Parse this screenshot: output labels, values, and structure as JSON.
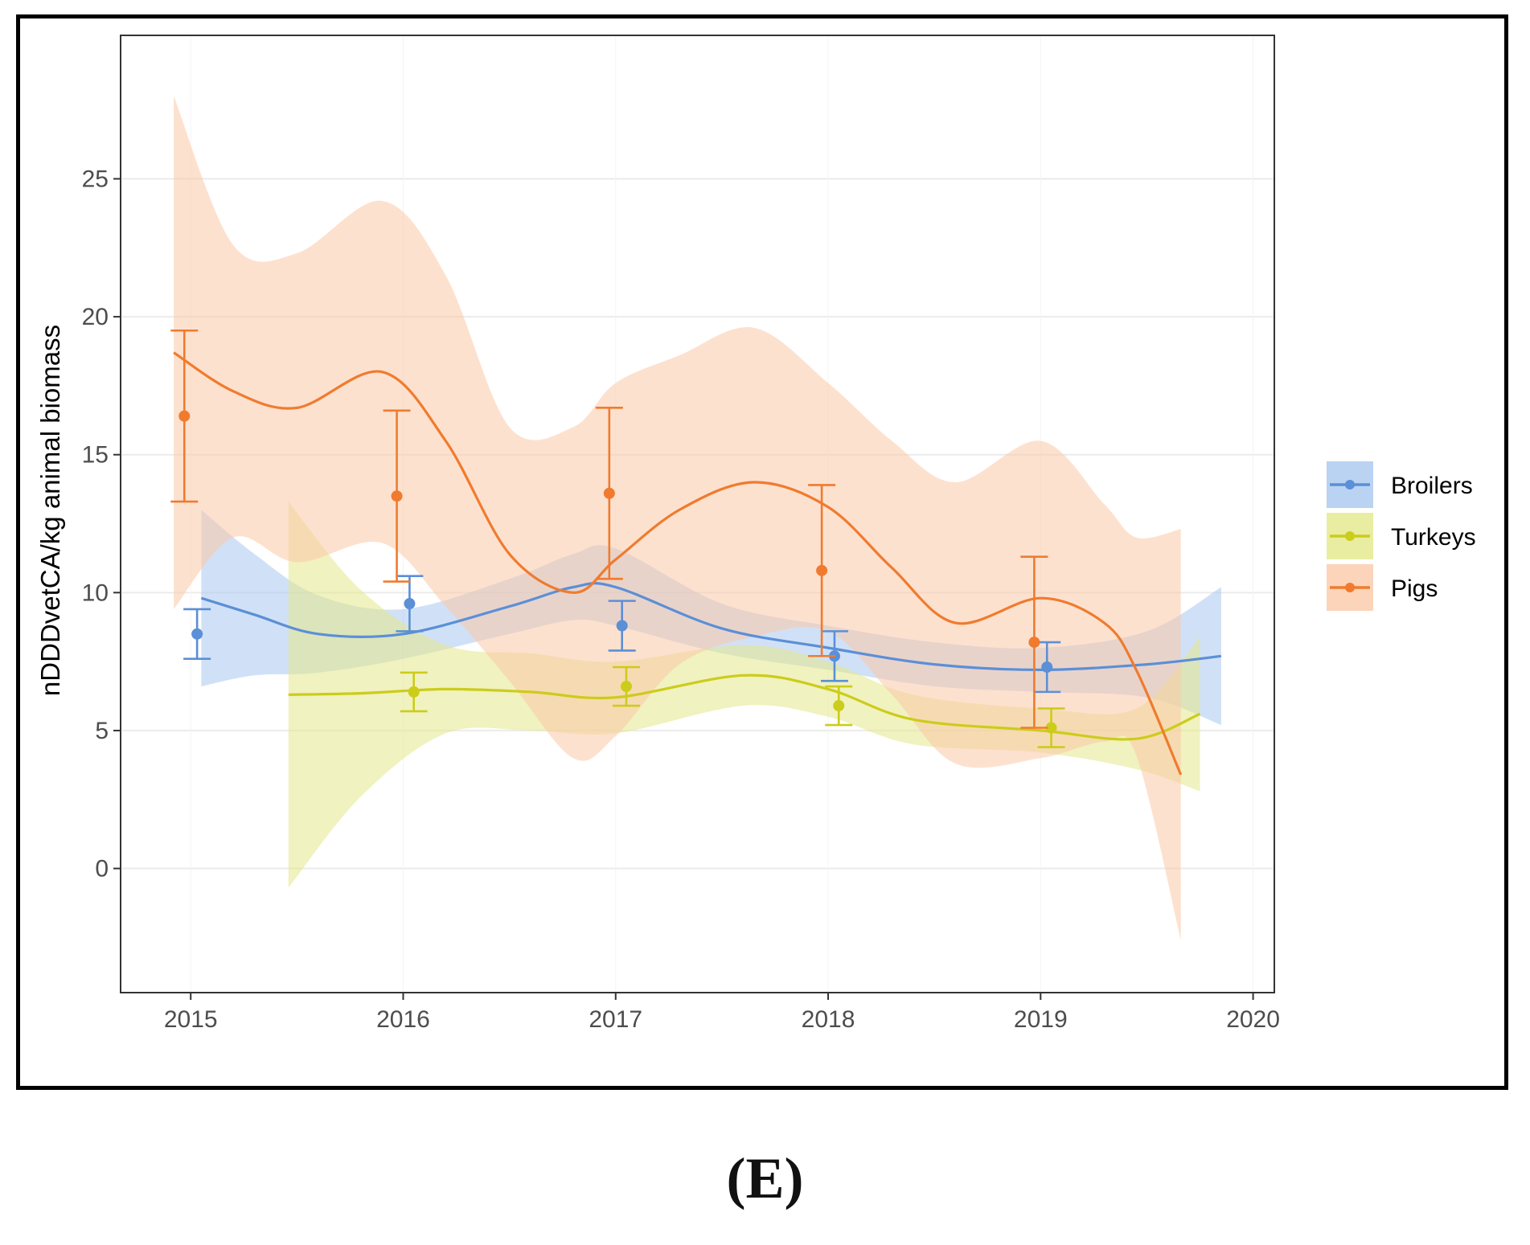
{
  "caption": "(E)",
  "chart_data": {
    "type": "line",
    "title": "",
    "xlabel": "",
    "ylabel": "nDDDvetCA/kg animal biomass",
    "xlim": [
      2014.67,
      2020.1
    ],
    "ylim": [
      -4.5,
      30.2
    ],
    "x_ticks": [
      2015,
      2016,
      2017,
      2018,
      2019,
      2020
    ],
    "y_ticks": [
      0,
      5,
      10,
      15,
      20,
      25
    ],
    "grid": true,
    "legend_position": "right",
    "series": [
      {
        "name": "Broilers",
        "color": "#5b8fd6",
        "fill": "#a9c8f0",
        "points": [
          {
            "x": 2015.03,
            "y": 8.5,
            "lo": 7.6,
            "hi": 9.4
          },
          {
            "x": 2016.03,
            "y": 9.6,
            "lo": 8.6,
            "hi": 10.6
          },
          {
            "x": 2017.03,
            "y": 8.8,
            "lo": 7.9,
            "hi": 9.7
          },
          {
            "x": 2018.03,
            "y": 7.7,
            "lo": 6.8,
            "hi": 8.6
          },
          {
            "x": 2019.03,
            "y": 7.3,
            "lo": 6.4,
            "hi": 8.2
          }
        ],
        "smooth": [
          {
            "x": 2015.05,
            "y": 9.8,
            "lo": 6.6,
            "hi": 13.0
          },
          {
            "x": 2015.3,
            "y": 9.2,
            "lo": 7.0,
            "hi": 11.4
          },
          {
            "x": 2015.6,
            "y": 8.5,
            "lo": 7.1,
            "hi": 9.9
          },
          {
            "x": 2016.0,
            "y": 8.5,
            "lo": 7.6,
            "hi": 9.4
          },
          {
            "x": 2016.5,
            "y": 9.5,
            "lo": 8.5,
            "hi": 10.5
          },
          {
            "x": 2016.8,
            "y": 10.2,
            "lo": 9.0,
            "hi": 11.4
          },
          {
            "x": 2017.0,
            "y": 10.2,
            "lo": 8.8,
            "hi": 11.6
          },
          {
            "x": 2017.5,
            "y": 8.7,
            "lo": 7.8,
            "hi": 9.6
          },
          {
            "x": 2018.0,
            "y": 8.0,
            "lo": 7.2,
            "hi": 8.8
          },
          {
            "x": 2018.5,
            "y": 7.4,
            "lo": 6.6,
            "hi": 8.2
          },
          {
            "x": 2019.0,
            "y": 7.2,
            "lo": 6.4,
            "hi": 8.0
          },
          {
            "x": 2019.5,
            "y": 7.4,
            "lo": 6.2,
            "hi": 8.6
          },
          {
            "x": 2019.85,
            "y": 7.7,
            "lo": 5.2,
            "hi": 10.2
          }
        ]
      },
      {
        "name": "Turkeys",
        "color": "#cccc1a",
        "fill": "#e3e88a",
        "points": [
          {
            "x": 2016.05,
            "y": 6.4,
            "lo": 5.7,
            "hi": 7.1
          },
          {
            "x": 2017.05,
            "y": 6.6,
            "lo": 5.9,
            "hi": 7.3
          },
          {
            "x": 2018.05,
            "y": 5.9,
            "lo": 5.2,
            "hi": 6.6
          },
          {
            "x": 2019.05,
            "y": 5.1,
            "lo": 4.4,
            "hi": 5.8
          }
        ],
        "smooth": [
          {
            "x": 2015.46,
            "y": 6.3,
            "lo": -0.7,
            "hi": 13.3
          },
          {
            "x": 2015.8,
            "y": 6.35,
            "lo": 2.6,
            "hi": 10.1
          },
          {
            "x": 2016.2,
            "y": 6.5,
            "lo": 4.9,
            "hi": 8.1
          },
          {
            "x": 2016.6,
            "y": 6.4,
            "lo": 5.0,
            "hi": 7.8
          },
          {
            "x": 2017.0,
            "y": 6.2,
            "lo": 4.9,
            "hi": 7.5
          },
          {
            "x": 2017.6,
            "y": 7.0,
            "lo": 5.9,
            "hi": 8.1
          },
          {
            "x": 2018.0,
            "y": 6.5,
            "lo": 5.5,
            "hi": 7.5
          },
          {
            "x": 2018.4,
            "y": 5.4,
            "lo": 4.5,
            "hi": 6.3
          },
          {
            "x": 2019.0,
            "y": 5.0,
            "lo": 4.2,
            "hi": 5.8
          },
          {
            "x": 2019.45,
            "y": 4.7,
            "lo": 3.6,
            "hi": 5.8
          },
          {
            "x": 2019.75,
            "y": 5.6,
            "lo": 2.8,
            "hi": 8.4
          }
        ]
      },
      {
        "name": "Pigs",
        "color": "#f07b2e",
        "fill": "#fbc9a8",
        "points": [
          {
            "x": 2014.97,
            "y": 16.4,
            "lo": 13.3,
            "hi": 19.5
          },
          {
            "x": 2015.97,
            "y": 13.5,
            "lo": 10.4,
            "hi": 16.6
          },
          {
            "x": 2016.97,
            "y": 13.6,
            "lo": 10.5,
            "hi": 16.7
          },
          {
            "x": 2017.97,
            "y": 10.8,
            "lo": 7.7,
            "hi": 13.9
          },
          {
            "x": 2018.97,
            "y": 8.2,
            "lo": 5.1,
            "hi": 11.3
          }
        ],
        "smooth": [
          {
            "x": 2014.92,
            "y": 18.7,
            "lo": 9.4,
            "hi": 28.0
          },
          {
            "x": 2015.2,
            "y": 17.3,
            "lo": 12.0,
            "hi": 22.6
          },
          {
            "x": 2015.5,
            "y": 16.7,
            "lo": 11.1,
            "hi": 22.3
          },
          {
            "x": 2015.9,
            "y": 18.0,
            "lo": 11.8,
            "hi": 24.2
          },
          {
            "x": 2016.2,
            "y": 15.5,
            "lo": 9.5,
            "hi": 21.5
          },
          {
            "x": 2016.5,
            "y": 11.4,
            "lo": 6.8,
            "hi": 16.0
          },
          {
            "x": 2016.8,
            "y": 10.0,
            "lo": 4.0,
            "hi": 16.0
          },
          {
            "x": 2017.0,
            "y": 11.2,
            "lo": 4.8,
            "hi": 17.6
          },
          {
            "x": 2017.3,
            "y": 13.0,
            "lo": 7.4,
            "hi": 18.6
          },
          {
            "x": 2017.65,
            "y": 14.0,
            "lo": 8.4,
            "hi": 19.6
          },
          {
            "x": 2018.0,
            "y": 13.1,
            "lo": 8.6,
            "hi": 17.6
          },
          {
            "x": 2018.3,
            "y": 10.9,
            "lo": 6.3,
            "hi": 15.5
          },
          {
            "x": 2018.6,
            "y": 8.9,
            "lo": 3.8,
            "hi": 14.0
          },
          {
            "x": 2019.0,
            "y": 9.8,
            "lo": 4.0,
            "hi": 15.5
          },
          {
            "x": 2019.3,
            "y": 8.9,
            "lo": 4.6,
            "hi": 13.2
          },
          {
            "x": 2019.45,
            "y": 7.2,
            "lo": 4.1,
            "hi": 12.0
          },
          {
            "x": 2019.66,
            "y": 3.4,
            "lo": -2.6,
            "hi": 12.3
          }
        ]
      }
    ]
  }
}
